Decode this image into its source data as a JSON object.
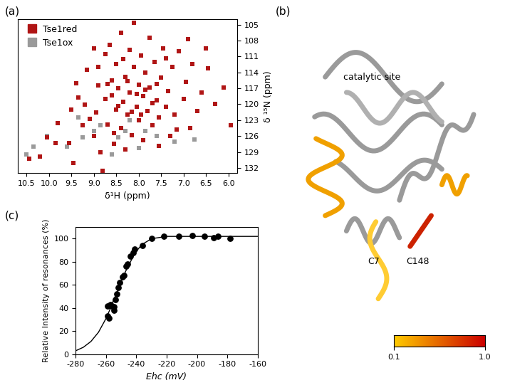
{
  "chart_data": [
    {
      "type": "scatter",
      "label": "(a)",
      "x_label": "δ¹H (ppm)",
      "y_label": "δ ¹⁵N (ppm)",
      "xlim": [
        10.7,
        5.8
      ],
      "ylim": [
        133,
        104
      ],
      "xticks": [
        {
          "value": 10.5,
          "label": "10.5"
        },
        {
          "value": 10.0,
          "label": "10.0"
        },
        {
          "value": 9.5,
          "label": "9.5"
        },
        {
          "value": 9.0,
          "label": "9.0"
        },
        {
          "value": 8.5,
          "label": "8.5"
        },
        {
          "value": 8.0,
          "label": "8.0"
        },
        {
          "value": 7.5,
          "label": "7.5"
        },
        {
          "value": 7.0,
          "label": "7.0"
        },
        {
          "value": 6.5,
          "label": "6.5"
        },
        {
          "value": 6.0,
          "label": "6.0"
        }
      ],
      "yticks": [
        105,
        108,
        111,
        114,
        117,
        120,
        123,
        126,
        129,
        132
      ],
      "legend": "upper left",
      "marker": "square",
      "series": [
        {
          "name": "Tse1ox",
          "color": "#9a9a9a",
          "x": [
            10.35,
            10.05,
            9.6,
            9.25,
            9.0,
            8.85,
            8.6,
            8.45,
            8.3,
            8.0,
            7.85,
            7.6,
            7.2,
            9.35,
            8.2,
            6.75,
            10.5
          ],
          "values": [
            128.0,
            126.0,
            128.0,
            126.3,
            125.0,
            124.0,
            129.5,
            126.3,
            125.0,
            128.3,
            125.0,
            126.0,
            127.0,
            122.5,
            123.0,
            126.6,
            129.5
          ]
        },
        {
          "name": "Tse1red",
          "color": "#b01515",
          "x": [
            10.45,
            10.2,
            10.05,
            9.85,
            9.8,
            9.55,
            9.5,
            9.45,
            9.4,
            9.35,
            9.25,
            9.2,
            9.15,
            9.1,
            9.0,
            8.95,
            8.9,
            8.85,
            8.8,
            8.75,
            8.75,
            8.7,
            8.65,
            8.6,
            8.55,
            8.5,
            8.5,
            8.45,
            8.4,
            8.4,
            8.35,
            8.3,
            8.3,
            8.25,
            8.2,
            8.2,
            8.15,
            8.1,
            8.1,
            8.05,
            8.0,
            8.0,
            7.95,
            7.9,
            7.9,
            7.85,
            7.8,
            7.75,
            7.75,
            7.7,
            7.65,
            7.6,
            7.55,
            7.5,
            7.45,
            7.4,
            7.35,
            7.3,
            7.25,
            7.2,
            7.1,
            7.0,
            6.95,
            6.85,
            6.8,
            6.7,
            6.6,
            6.5,
            6.45,
            6.3,
            6.1,
            5.95,
            8.6,
            8.45,
            8.25,
            8.15,
            8.05,
            7.95,
            7.85,
            7.7,
            7.6,
            8.35,
            8.9,
            9.0,
            7.4,
            6.9,
            7.15,
            8.55,
            7.55,
            8.7
          ],
          "values": [
            130.2,
            129.8,
            126.3,
            127.3,
            123.5,
            127.3,
            121.0,
            131.0,
            116.0,
            118.8,
            124.0,
            120.1,
            113.5,
            122.8,
            126.0,
            121.5,
            116.5,
            129.0,
            132.5,
            110.5,
            119.0,
            123.8,
            108.8,
            115.5,
            127.5,
            121.0,
            112.5,
            117.0,
            124.5,
            106.5,
            119.5,
            114.8,
            128.5,
            122.0,
            109.7,
            117.8,
            125.8,
            104.6,
            113.0,
            120.5,
            116.3,
            123.0,
            110.8,
            118.5,
            126.8,
            114.0,
            121.3,
            107.5,
            116.8,
            124.0,
            112.0,
            119.3,
            122.5,
            115.0,
            109.5,
            120.5,
            117.5,
            126.0,
            113.0,
            122.0,
            110.0,
            119.0,
            115.8,
            124.5,
            112.5,
            121.3,
            117.8,
            109.5,
            113.2,
            120.0,
            116.8,
            124.0,
            118.3,
            120.3,
            115.6,
            121.4,
            118.0,
            122.0,
            117.2,
            119.8,
            116.2,
            111.5,
            113.0,
            109.5,
            111.3,
            107.8,
            124.8,
            125.5,
            127.8,
            116.2
          ]
        }
      ]
    },
    {
      "type": "diagram",
      "label": "(b)",
      "annotations": [
        "catalytic site",
        "C7",
        "C148"
      ],
      "colors": [
        "#ffcc00",
        "#cc0000"
      ],
      "colorbar_range": [
        0.1,
        1.0
      ],
      "colorbar_ticks": [
        0.1,
        {
          "value": 1.0,
          "label": "1.0"
        }
      ]
    },
    {
      "type": "scatter",
      "label": "(c)",
      "x_label": "Ehc (mV)",
      "y_label": "Relative Intensity of resonances (%)",
      "xlim": [
        -280,
        -160
      ],
      "ylim": [
        0,
        110
      ],
      "xticks": [
        -280,
        -260,
        -240,
        -220,
        -200,
        -180,
        -160
      ],
      "yticks": [
        0,
        20,
        40,
        60,
        80,
        100
      ],
      "series": [
        {
          "type": "scatter",
          "color": "#000000",
          "marker": "circle",
          "x": [
            -259,
            -258,
            -259,
            -257,
            -256,
            -255,
            -255,
            -254,
            -253,
            -252,
            -251,
            -249,
            -248,
            -247,
            -246,
            -244,
            -242,
            -241,
            -236,
            -230,
            -222,
            -212,
            -203,
            -195,
            -189,
            -186,
            -178
          ],
          "values": [
            33,
            31,
            42,
            43,
            42,
            38,
            41,
            47,
            52,
            58,
            62,
            67,
            68,
            76,
            78,
            85,
            88,
            91,
            94,
            100,
            102,
            102,
            103,
            102,
            101,
            102,
            100
          ]
        },
        {
          "type": "line",
          "color": "#000000",
          "line_style": "solid",
          "x": [
            -280,
            -275,
            -270,
            -265,
            -260,
            -257,
            -255,
            -252,
            -250,
            -247,
            -245,
            -242,
            -240,
            -237,
            -235,
            -230,
            -225,
            -220,
            -200,
            -180,
            -160
          ],
          "values": [
            3,
            6,
            11,
            19,
            31,
            40,
            47,
            56,
            63,
            72,
            77,
            85,
            89,
            94,
            96,
            100,
            101,
            102,
            102,
            102,
            102
          ]
        }
      ]
    }
  ]
}
